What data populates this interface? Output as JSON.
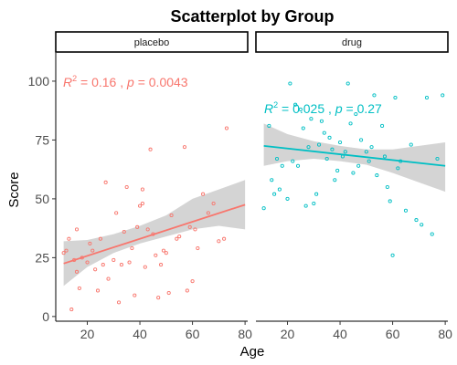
{
  "chart_data": {
    "type": "scatter",
    "title": "Scatterplot by Group",
    "xlabel": "Age",
    "ylabel": "Score",
    "xlim": [
      8,
      81
    ],
    "ylim": [
      -2,
      112
    ],
    "x_ticks": [
      20,
      40,
      60,
      80
    ],
    "y_ticks": [
      0,
      25,
      50,
      75,
      100
    ],
    "grid": false,
    "legend": "none",
    "panels": [
      {
        "name": "placebo",
        "color": "#F8766D",
        "r2_text": "= 0.16 ,",
        "p_text": "= 0.0043",
        "fit": {
          "x0": 11,
          "y0": 22.5,
          "x1": 80,
          "y1": 47.5
        },
        "ci_lower": [
          [
            11,
            13
          ],
          [
            20,
            21
          ],
          [
            30,
            27
          ],
          [
            40,
            31
          ],
          [
            50,
            34
          ],
          [
            60,
            37
          ],
          [
            70,
            38.5
          ],
          [
            80,
            37
          ]
        ],
        "ci_upper": [
          [
            11,
            32
          ],
          [
            20,
            32.5
          ],
          [
            30,
            35
          ],
          [
            40,
            38.5
          ],
          [
            50,
            43
          ],
          [
            60,
            50
          ],
          [
            70,
            54
          ],
          [
            80,
            58
          ]
        ],
        "points": [
          [
            11,
            27
          ],
          [
            12,
            28
          ],
          [
            13,
            33
          ],
          [
            14,
            3
          ],
          [
            15,
            24
          ],
          [
            16,
            19
          ],
          [
            16,
            37
          ],
          [
            17,
            12
          ],
          [
            18,
            25
          ],
          [
            20,
            23
          ],
          [
            21,
            31
          ],
          [
            22,
            28
          ],
          [
            23,
            20
          ],
          [
            24,
            11
          ],
          [
            25,
            33
          ],
          [
            26,
            22
          ],
          [
            27,
            57
          ],
          [
            28,
            16
          ],
          [
            30,
            24
          ],
          [
            31,
            44
          ],
          [
            32,
            6
          ],
          [
            33,
            22
          ],
          [
            34,
            36
          ],
          [
            35,
            55
          ],
          [
            36,
            23
          ],
          [
            37,
            29
          ],
          [
            38,
            9
          ],
          [
            39,
            38
          ],
          [
            40,
            47
          ],
          [
            41,
            48
          ],
          [
            41,
            54
          ],
          [
            42,
            21
          ],
          [
            43,
            37
          ],
          [
            44,
            71
          ],
          [
            45,
            35
          ],
          [
            46,
            26
          ],
          [
            47,
            8
          ],
          [
            48,
            22
          ],
          [
            49,
            28
          ],
          [
            50,
            27
          ],
          [
            51,
            10
          ],
          [
            52,
            43
          ],
          [
            54,
            33
          ],
          [
            55,
            34
          ],
          [
            57,
            72
          ],
          [
            58,
            11
          ],
          [
            59,
            38
          ],
          [
            60,
            15
          ],
          [
            61,
            37
          ],
          [
            62,
            29
          ],
          [
            64,
            52
          ],
          [
            66,
            44
          ],
          [
            68,
            48
          ],
          [
            70,
            32
          ],
          [
            72,
            33
          ],
          [
            73,
            80
          ]
        ]
      },
      {
        "name": "drug",
        "color": "#00BFC4",
        "r2_text": "= 0.025 ,",
        "p_text": "= 0.27",
        "fit": {
          "x0": 11,
          "y0": 72.5,
          "x1": 80,
          "y1": 64
        },
        "ci_lower": [
          [
            11,
            64
          ],
          [
            20,
            66
          ],
          [
            30,
            67
          ],
          [
            40,
            66
          ],
          [
            50,
            64.5
          ],
          [
            60,
            61
          ],
          [
            70,
            57
          ],
          [
            80,
            53
          ]
        ],
        "ci_upper": [
          [
            11,
            82
          ],
          [
            20,
            77.5
          ],
          [
            30,
            74.5
          ],
          [
            40,
            72.5
          ],
          [
            50,
            71
          ],
          [
            60,
            71
          ],
          [
            70,
            72.5
          ],
          [
            80,
            74
          ]
        ],
        "points": [
          [
            11,
            46
          ],
          [
            13,
            81
          ],
          [
            14,
            58
          ],
          [
            15,
            52
          ],
          [
            16,
            67
          ],
          [
            17,
            54
          ],
          [
            18,
            64
          ],
          [
            20,
            50
          ],
          [
            21,
            99
          ],
          [
            22,
            66
          ],
          [
            23,
            90
          ],
          [
            24,
            64
          ],
          [
            25,
            88
          ],
          [
            26,
            80
          ],
          [
            27,
            47
          ],
          [
            28,
            72
          ],
          [
            29,
            84
          ],
          [
            30,
            48
          ],
          [
            31,
            52
          ],
          [
            32,
            73
          ],
          [
            33,
            83
          ],
          [
            34,
            78
          ],
          [
            35,
            67
          ],
          [
            36,
            76
          ],
          [
            37,
            71
          ],
          [
            38,
            58
          ],
          [
            39,
            62
          ],
          [
            40,
            74
          ],
          [
            41,
            68
          ],
          [
            42,
            70
          ],
          [
            43,
            99
          ],
          [
            44,
            82
          ],
          [
            45,
            61
          ],
          [
            46,
            86
          ],
          [
            47,
            64
          ],
          [
            48,
            75
          ],
          [
            50,
            70
          ],
          [
            51,
            66
          ],
          [
            52,
            72
          ],
          [
            53,
            94
          ],
          [
            54,
            60
          ],
          [
            56,
            81
          ],
          [
            57,
            68
          ],
          [
            58,
            55
          ],
          [
            59,
            49
          ],
          [
            60,
            26
          ],
          [
            61,
            93
          ],
          [
            62,
            63
          ],
          [
            63,
            66
          ],
          [
            65,
            45
          ],
          [
            67,
            73
          ],
          [
            69,
            41
          ],
          [
            71,
            39
          ],
          [
            73,
            93
          ],
          [
            75,
            35
          ],
          [
            77,
            67
          ],
          [
            79,
            94
          ]
        ]
      }
    ]
  }
}
